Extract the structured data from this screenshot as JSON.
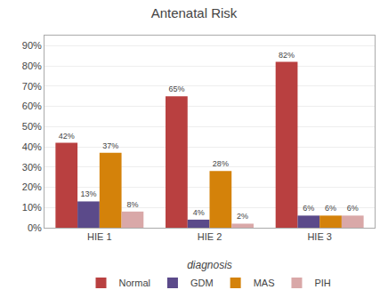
{
  "chart_data": {
    "type": "bar",
    "title": "Antenatal Risk",
    "xlabel": "diagnosis",
    "categories": [
      "HIE 1",
      "HIE 2",
      "HIE 3"
    ],
    "series": [
      {
        "name": "Normal",
        "color": "#B94040",
        "values": [
          42,
          65,
          82
        ],
        "value_labels": [
          "42%",
          "65%",
          "82%"
        ]
      },
      {
        "name": "GDM",
        "color": "#5B4A8A",
        "values": [
          13,
          4,
          6
        ],
        "value_labels": [
          "13%",
          "4%",
          "6%"
        ]
      },
      {
        "name": "MAS",
        "color": "#D4820A",
        "values": [
          37,
          28,
          6
        ],
        "value_labels": [
          "37%",
          "28%",
          "6%"
        ]
      },
      {
        "name": "PIH",
        "color": "#D9A8A8",
        "values": [
          8,
          2,
          6
        ],
        "value_labels": [
          "8%",
          "2%",
          "6%"
        ]
      }
    ],
    "ylim": [
      0,
      95
    ],
    "yticks": [
      {
        "value": 0,
        "label": "0%"
      },
      {
        "value": 10,
        "label": "10%"
      },
      {
        "value": 20,
        "label": "20%"
      },
      {
        "value": 30,
        "label": "30%"
      },
      {
        "value": 40,
        "label": "40%"
      },
      {
        "value": 50,
        "label": "50%"
      },
      {
        "value": 60,
        "label": "60%"
      },
      {
        "value": 70,
        "label": "70%"
      },
      {
        "value": 80,
        "label": "80%"
      },
      {
        "value": 90,
        "label": "90%"
      }
    ],
    "grid": true,
    "data_labels": true,
    "legend": "bottom"
  }
}
